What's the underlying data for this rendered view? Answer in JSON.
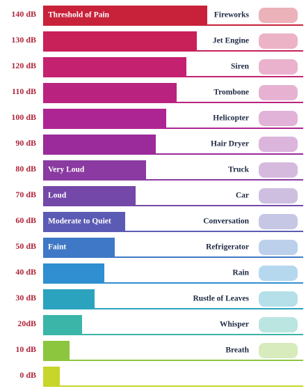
{
  "rows": [
    {
      "level": "140 dB",
      "bar_label": "Threshold of Pain",
      "source": "Fireworks"
    },
    {
      "level": "130 dB",
      "source": "Jet Engine"
    },
    {
      "level": "120 dB",
      "source": "Siren"
    },
    {
      "level": "110 dB",
      "source": "Trombone"
    },
    {
      "level": "100 dB",
      "source": "Helicopter"
    },
    {
      "level": "90 dB",
      "source": "Hair Dryer"
    },
    {
      "level": "80 dB",
      "bar_label": "Very Loud",
      "source": "Truck"
    },
    {
      "level": "70 dB",
      "bar_label": "Loud",
      "source": "Car"
    },
    {
      "level": "60 dB",
      "bar_label": "Moderate to Quiet",
      "source": "Conversation"
    },
    {
      "level": "50 dB",
      "bar_label": "Faint",
      "source": "Refrigerator"
    },
    {
      "level": "40 dB",
      "source": "Rain"
    },
    {
      "level": "30 dB",
      "source": "Rustle of Leaves"
    },
    {
      "level": "20dB",
      "source": "Whisper"
    },
    {
      "level": "10 dB",
      "source": "Breath"
    },
    {
      "level": "0 dB"
    }
  ]
}
